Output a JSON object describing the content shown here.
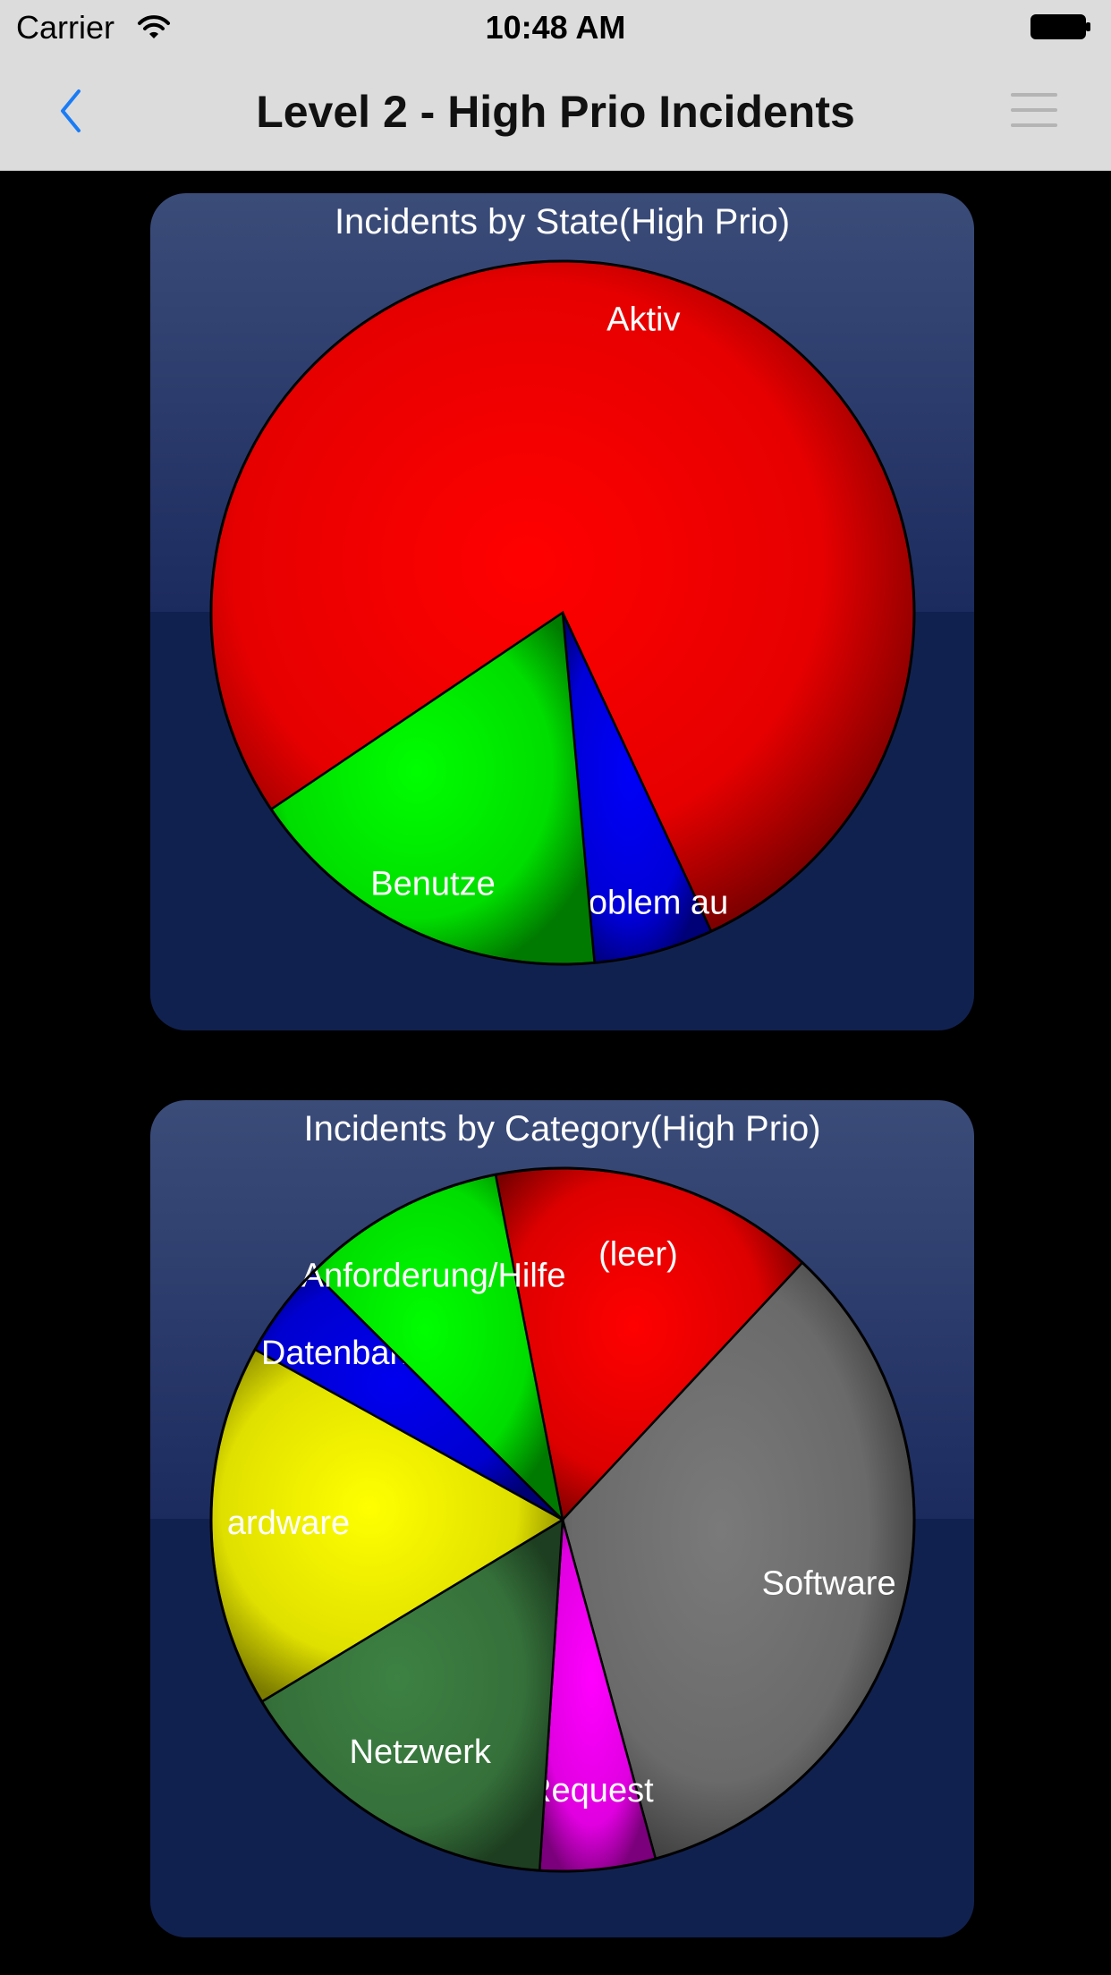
{
  "status_bar": {
    "carrier": "Carrier",
    "time": "10:48 AM"
  },
  "nav": {
    "title": "Level 2 - High Prio Incidents",
    "back_icon": "chevron-left-icon",
    "menu_icon": "hamburger-menu-icon",
    "accent": "#1a7cf5"
  },
  "chart_data": [
    {
      "type": "pie",
      "title": "Incidents by State(High Prio)",
      "slices": [
        {
          "label": "Aktiv",
          "value": 77.5,
          "color": "#e60000"
        },
        {
          "label": "Problem au",
          "value": 5.5,
          "color": "#0000d8"
        },
        {
          "label": "Benutze",
          "value": 17.0,
          "color": "#00dd00"
        }
      ]
    },
    {
      "type": "pie",
      "title": "Incidents by Category(High Prio)",
      "slices": [
        {
          "label": "(leer)",
          "value": 15.0,
          "color": "#dd0000"
        },
        {
          "label": "Software",
          "value": 33.8,
          "color": "#6a6a6a"
        },
        {
          "label": "Request",
          "value": 5.3,
          "color": "#e000e0"
        },
        {
          "label": "Netzwerk",
          "value": 15.3,
          "color": "#35703a"
        },
        {
          "label": "ardware",
          "value": 16.7,
          "color": "#e0e000"
        },
        {
          "label": "Datenbank",
          "value": 4.4,
          "color": "#0000d0"
        },
        {
          "label": "Anforderung/Hilfe",
          "value": 9.5,
          "color": "#00dd00"
        }
      ]
    }
  ]
}
